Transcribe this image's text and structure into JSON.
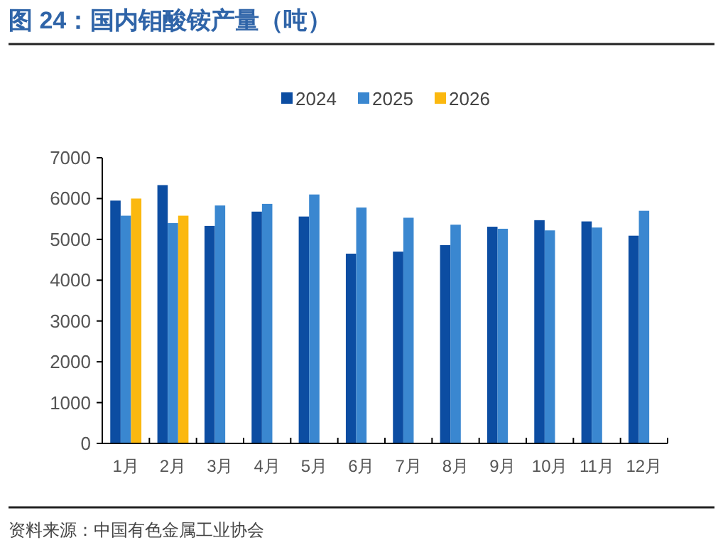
{
  "chart_data": {
    "type": "bar",
    "title": "图 24：国内钼酸铵产量（吨）",
    "categories": [
      "1月",
      "2月",
      "3月",
      "4月",
      "5月",
      "6月",
      "7月",
      "8月",
      "9月",
      "10月",
      "11月",
      "12月"
    ],
    "series": [
      {
        "name": "2024",
        "color": "#0c4da2",
        "values": [
          5950,
          6330,
          5330,
          5680,
          5560,
          4650,
          4700,
          4860,
          5310,
          5470,
          5440,
          5090
        ]
      },
      {
        "name": "2025",
        "color": "#3a87d0",
        "values": [
          5580,
          5400,
          5830,
          5870,
          6100,
          5780,
          5530,
          5360,
          5260,
          5220,
          5290,
          5700
        ]
      },
      {
        "name": "2026",
        "color": "#fbb80f",
        "values": [
          6000,
          5580,
          null,
          null,
          null,
          null,
          null,
          null,
          null,
          null,
          null,
          null
        ]
      }
    ],
    "ylim": [
      0,
      7000
    ],
    "yticks": [
      0,
      1000,
      2000,
      3000,
      4000,
      5000,
      6000,
      7000
    ],
    "grid": false,
    "legend": "top",
    "annotations": [
      "资料来源：中国有色金属工业协会"
    ]
  }
}
